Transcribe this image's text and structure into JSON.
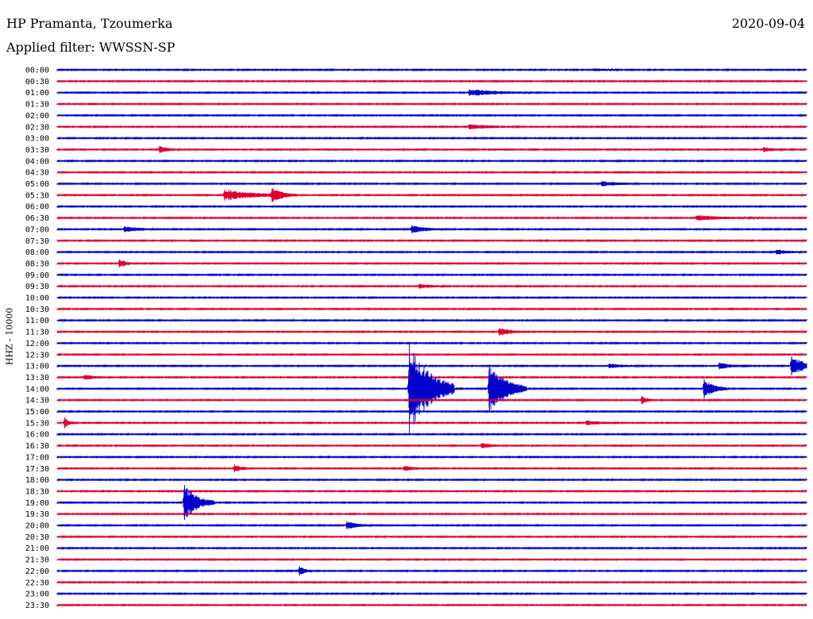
{
  "header": {
    "station": "HP Pramanta, Tzoumerka",
    "filter": "Applied filter: WWSSN-SP",
    "date": "2020-09-04"
  },
  "chart_data": {
    "type": "helicorder",
    "ylabel": "HHZ - 10000",
    "colors": {
      "even_hour": "#0000cc",
      "odd_half_hour": "#dd0033"
    },
    "rows": [
      "00:00",
      "00:30",
      "01:00",
      "01:30",
      "02:00",
      "02:30",
      "03:00",
      "03:30",
      "04:00",
      "04:30",
      "05:00",
      "05:30",
      "06:00",
      "06:30",
      "07:00",
      "07:30",
      "08:00",
      "08:30",
      "09:00",
      "09:30",
      "10:00",
      "10:30",
      "11:00",
      "11:30",
      "12:00",
      "12:30",
      "13:00",
      "13:30",
      "14:00",
      "14:30",
      "15:00",
      "15:30",
      "16:00",
      "16:30",
      "17:00",
      "17:30",
      "18:00",
      "18:30",
      "19:00",
      "19:30",
      "20:00",
      "20:30",
      "21:00",
      "21:30",
      "22:00",
      "22:30",
      "23:00",
      "23:30"
    ],
    "events": [
      {
        "row": "00:00",
        "minute": 21.5,
        "amp": 1.5,
        "dur": 1.0
      },
      {
        "row": "01:00",
        "minute": 16.5,
        "amp": 4,
        "dur": 2.5
      },
      {
        "row": "02:30",
        "minute": 16.5,
        "amp": 3,
        "dur": 2.0
      },
      {
        "row": "03:30",
        "minute": 4.1,
        "amp": 4,
        "dur": 0.8
      },
      {
        "row": "03:30",
        "minute": 28.3,
        "amp": 3,
        "dur": 0.8
      },
      {
        "row": "05:00",
        "minute": 21.8,
        "amp": 3,
        "dur": 1.5
      },
      {
        "row": "05:30",
        "minute": 6.7,
        "amp": 7,
        "dur": 2.5
      },
      {
        "row": "05:30",
        "minute": 8.6,
        "amp": 8,
        "dur": 1.0
      },
      {
        "row": "06:30",
        "minute": 25.6,
        "amp": 3,
        "dur": 2.5
      },
      {
        "row": "07:00",
        "minute": 2.7,
        "amp": 4,
        "dur": 1.2
      },
      {
        "row": "07:00",
        "minute": 14.2,
        "amp": 5,
        "dur": 1.2
      },
      {
        "row": "08:00",
        "minute": 28.8,
        "amp": 3,
        "dur": 1.0
      },
      {
        "row": "08:30",
        "minute": 2.5,
        "amp": 5,
        "dur": 0.6
      },
      {
        "row": "09:30",
        "minute": 14.5,
        "amp": 3,
        "dur": 1.0
      },
      {
        "row": "11:30",
        "minute": 17.7,
        "amp": 5,
        "dur": 1.0
      },
      {
        "row": "13:00",
        "minute": 22.1,
        "amp": 3,
        "dur": 1.2
      },
      {
        "row": "13:00",
        "minute": 26.5,
        "amp": 4,
        "dur": 1.0
      },
      {
        "row": "13:00",
        "minute": 29.4,
        "amp": 12,
        "dur": 1.2
      },
      {
        "row": "13:30",
        "minute": 1.1,
        "amp": 3,
        "dur": 1.0
      },
      {
        "row": "14:00",
        "minute": 14.1,
        "amp": 56,
        "dur": 1.8
      },
      {
        "row": "14:00",
        "minute": 17.3,
        "amp": 30,
        "dur": 1.5
      },
      {
        "row": "14:00",
        "minute": 25.9,
        "amp": 12,
        "dur": 0.9
      },
      {
        "row": "14:30",
        "minute": 23.4,
        "amp": 5,
        "dur": 0.5
      },
      {
        "row": "15:30",
        "minute": 0.3,
        "amp": 7,
        "dur": 0.4
      },
      {
        "row": "15:30",
        "minute": 21.2,
        "amp": 3,
        "dur": 1.2
      },
      {
        "row": "16:30",
        "minute": 17.0,
        "amp": 3,
        "dur": 1.0
      },
      {
        "row": "17:30",
        "minute": 7.1,
        "amp": 5,
        "dur": 0.6
      },
      {
        "row": "17:30",
        "minute": 13.9,
        "amp": 3,
        "dur": 1.0
      },
      {
        "row": "19:00",
        "minute": 5.1,
        "amp": 22,
        "dur": 1.2
      },
      {
        "row": "20:00",
        "minute": 11.6,
        "amp": 5,
        "dur": 1.0
      },
      {
        "row": "22:00",
        "minute": 9.7,
        "amp": 6,
        "dur": 0.5
      }
    ]
  }
}
